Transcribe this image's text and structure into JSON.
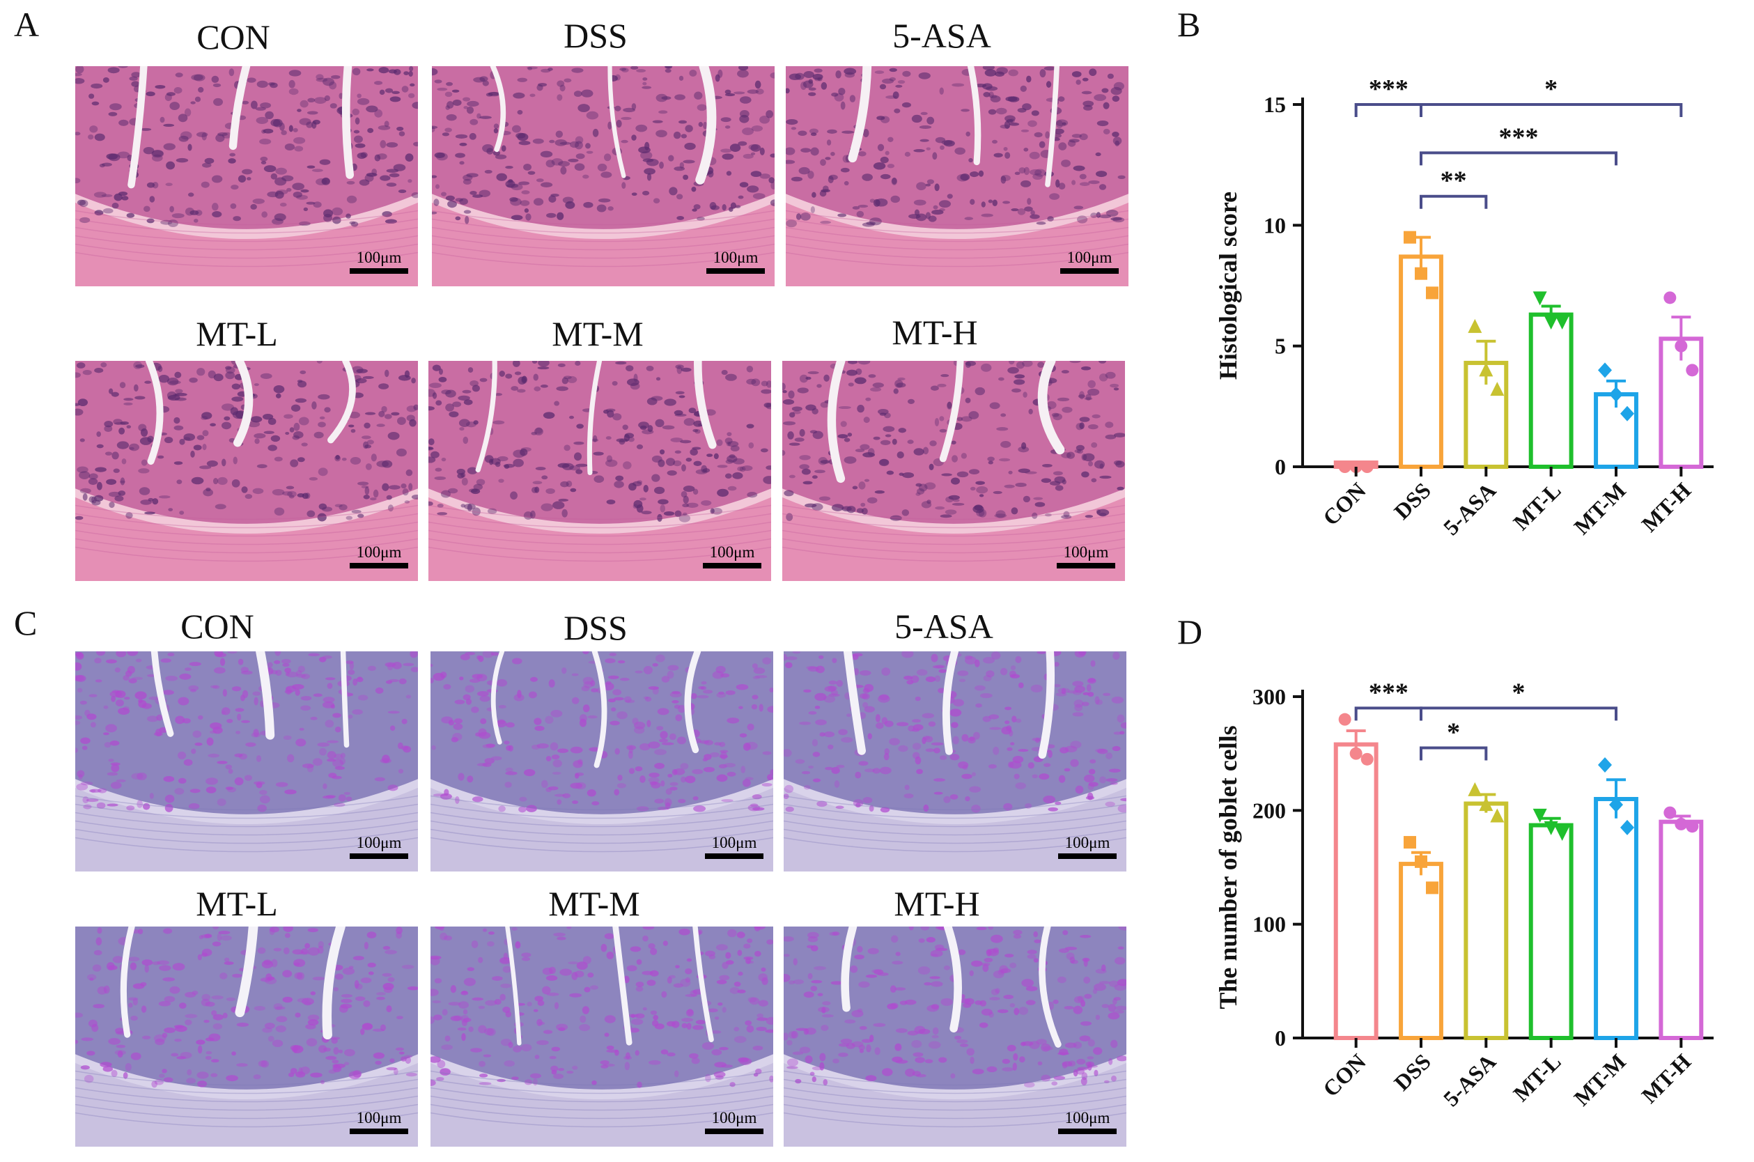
{
  "panels": {
    "A": {
      "letter": "A",
      "titles": [
        "CON",
        "DSS",
        "5-ASA",
        "MT-L",
        "MT-M",
        "MT-H"
      ]
    },
    "B": {
      "letter": "B"
    },
    "C": {
      "letter": "C",
      "titles": [
        "CON",
        "DSS",
        "5-ASA",
        "MT-L",
        "MT-M",
        "MT-H"
      ]
    },
    "D": {
      "letter": "D"
    }
  },
  "scale_bar_label": "100μm",
  "stain_colors": {
    "he": {
      "bg": "#f2c7d8",
      "tissue": "#c25d9a",
      "crypt": "#5a2a6e",
      "muscle": "#e58fb5",
      "lumen": "#f6f0f4"
    },
    "pas": {
      "bg": "#d9d3ea",
      "tissue": "#7f77b6",
      "crypt": "#b04ad0",
      "muscle": "#c9c1e0",
      "lumen": "#f4f2f8"
    }
  },
  "group_colors": [
    "#f4868c",
    "#f8a43a",
    "#c8c231",
    "#1fbf2c",
    "#1ea4e8",
    "#d468d6"
  ],
  "sig_color": "#4a4d8a",
  "chart_data": [
    {
      "type": "bar",
      "panel": "B",
      "categories": [
        "CON",
        "DSS",
        "5-ASA",
        "MT-L",
        "MT-M",
        "MT-H"
      ],
      "values": [
        0.0,
        8.7,
        4.3,
        6.3,
        3.0,
        5.3
      ],
      "errors": [
        0.0,
        0.8,
        0.9,
        0.35,
        0.55,
        0.9
      ],
      "points": [
        [
          0,
          0,
          0
        ],
        [
          9.5,
          8.0,
          7.2
        ],
        [
          5.8,
          4.0,
          3.2
        ],
        [
          7.0,
          6.0,
          6.0
        ],
        [
          4.0,
          3.0,
          2.2
        ],
        [
          7.0,
          5.0,
          4.0
        ]
      ],
      "markers": [
        "circle",
        "square",
        "triangle",
        "triangle-down",
        "diamond",
        "circle"
      ],
      "ylabel": "Histological score",
      "xlabel": "",
      "ylim": [
        0,
        15
      ],
      "yticks": [
        0,
        5,
        10,
        15
      ],
      "significance": [
        {
          "from": 0,
          "to": 1,
          "label": "***",
          "level": 15.0
        },
        {
          "from": 1,
          "to": 5,
          "label": "*",
          "level": 15.0
        },
        {
          "from": 1,
          "to": 4,
          "label": "***",
          "level": 13.0
        },
        {
          "from": 1,
          "to": 2,
          "label": "**",
          "level": 11.2
        }
      ]
    },
    {
      "type": "bar",
      "panel": "D",
      "categories": [
        "CON",
        "DSS",
        "5-ASA",
        "MT-L",
        "MT-M",
        "MT-H"
      ],
      "values": [
        258,
        153,
        206,
        187,
        210,
        190
      ],
      "errors": [
        12,
        10,
        8,
        6,
        17,
        5
      ],
      "points": [
        [
          280,
          250,
          245
        ],
        [
          172,
          155,
          132
        ],
        [
          218,
          205,
          195
        ],
        [
          196,
          185,
          180
        ],
        [
          240,
          205,
          185
        ],
        [
          198,
          188,
          186
        ]
      ],
      "markers": [
        "circle",
        "square",
        "triangle",
        "triangle-down",
        "diamond",
        "circle"
      ],
      "ylabel": "The number of goblet cells",
      "xlabel": "",
      "ylim": [
        0,
        300
      ],
      "yticks": [
        0,
        100,
        200,
        300
      ],
      "significance": [
        {
          "from": 0,
          "to": 1,
          "label": "***",
          "level": 290
        },
        {
          "from": 1,
          "to": 4,
          "label": "*",
          "level": 290
        },
        {
          "from": 1,
          "to": 2,
          "label": "*",
          "level": 255
        }
      ]
    }
  ]
}
